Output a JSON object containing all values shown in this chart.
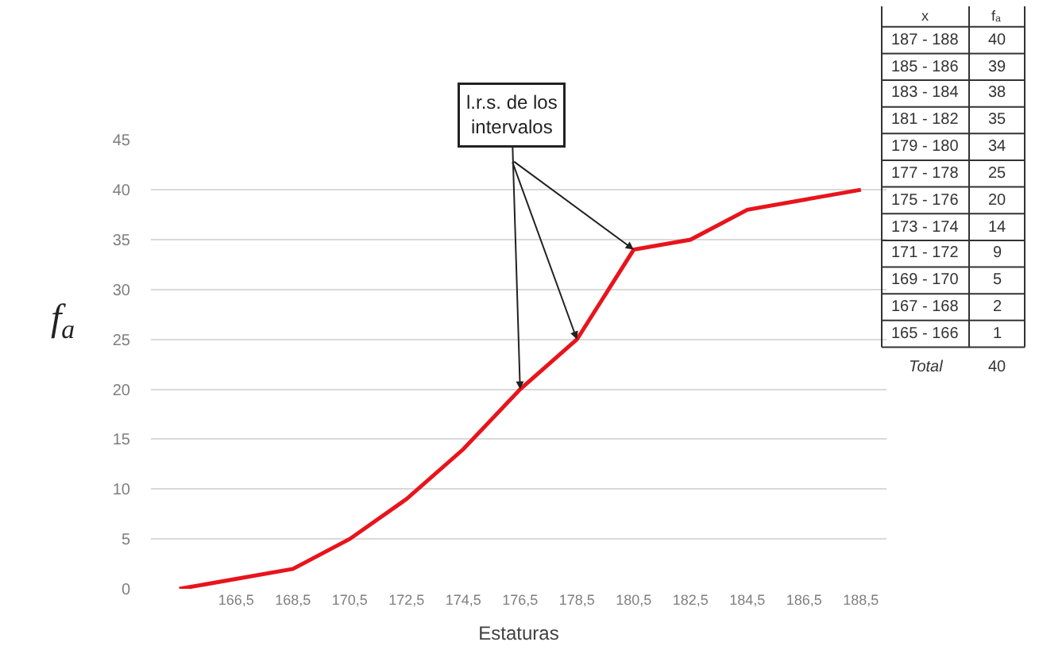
{
  "chart_data": [
    {
      "type": "line",
      "xlabel": "Estaturas",
      "ylabel": "f$_{a}$",
      "x": [
        164.5,
        166.5,
        168.5,
        170.5,
        172.5,
        174.5,
        176.5,
        178.5,
        180.5,
        182.5,
        184.5,
        186.5,
        188.5
      ],
      "series": [
        {
          "color": "#e8141c",
          "values": [
            0,
            1,
            2,
            5,
            9,
            14,
            20,
            25,
            34,
            35,
            38,
            39,
            40
          ]
        }
      ],
      "xlim": [
        163.5,
        189.4
      ],
      "ylim": [
        0,
        45
      ],
      "xticks": [
        {
          "value": 166.5,
          "label": "166,5"
        },
        {
          "value": 168.5,
          "label": "168,5"
        },
        {
          "value": 170.5,
          "label": "170,5"
        },
        {
          "value": 172.5,
          "label": "172,5"
        },
        {
          "value": 174.5,
          "label": "174,5"
        },
        {
          "value": 176.5,
          "label": "176,5"
        },
        {
          "value": 178.5,
          "label": "178,5"
        },
        {
          "value": 180.5,
          "label": "180,5"
        },
        {
          "value": 182.5,
          "label": "182,5"
        },
        {
          "value": 184.5,
          "label": "184,5"
        },
        {
          "value": 186.5,
          "label": "186,5"
        },
        {
          "value": 188.5,
          "label": "188,5"
        }
      ],
      "yticks": [
        0,
        5,
        10,
        15,
        20,
        25,
        30,
        35,
        40,
        45
      ],
      "grid": "y",
      "marker": "none",
      "line_style": "solid",
      "annotations": [
        {
          "text": "l.r.s. de los intervalos",
          "x": 176.5,
          "y": 20
        }
      ]
    },
    {
      "type": "other",
      "annotations": [
        "x",
        "fₐ",
        "187 - 188",
        "40",
        "185 - 186",
        "39",
        "183 - 184",
        "38",
        "181 - 182",
        "35",
        "179 - 180",
        "34",
        "177 - 178",
        "25",
        "175 - 176",
        "20",
        "173 - 174",
        "14",
        "171 - 172",
        "9",
        "169 - 170",
        "5",
        "167 - 168",
        "2",
        "165 - 166",
        "1",
        "Total",
        "40"
      ]
    }
  ]
}
